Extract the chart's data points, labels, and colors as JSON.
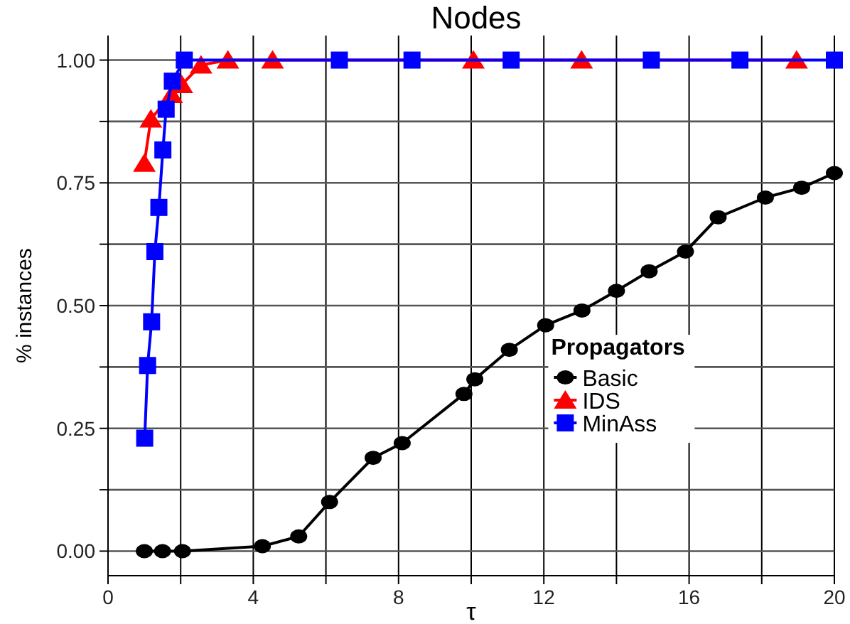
{
  "chart_data": {
    "type": "line",
    "title": "Nodes",
    "xlabel": "τ",
    "ylabel": "% instances",
    "legend_title": "Propagators",
    "legend": "right",
    "grid": true,
    "line_style": "solid",
    "xlim": [
      0,
      20
    ],
    "ylim": [
      -0.05,
      1.05
    ],
    "xticks": [
      0,
      {
        "value": 2,
        "label": null
      },
      4,
      {
        "value": 6,
        "label": null
      },
      8,
      {
        "value": 10,
        "label": null
      },
      12,
      {
        "value": 14,
        "label": null
      },
      16,
      {
        "value": 18,
        "label": null
      },
      20
    ],
    "yticks": [
      {
        "value": 0,
        "label": "0.00"
      },
      {
        "value": 0.125,
        "label": null
      },
      {
        "value": 0.25,
        "label": "0.25"
      },
      {
        "value": 0.375,
        "label": null
      },
      {
        "value": 0.5,
        "label": "0.50"
      },
      {
        "value": 0.625,
        "label": null
      },
      {
        "value": 0.75,
        "label": "0.75"
      },
      {
        "value": 0.875,
        "label": null
      },
      {
        "value": 1,
        "label": "1.00"
      }
    ],
    "series": [
      {
        "name": "Basic",
        "color": "#000000",
        "marker": "circle",
        "x": [
          1,
          1.5,
          2.05,
          4.25,
          5.25,
          6.1,
          7.3,
          8.1,
          9.8,
          10.1,
          11.05,
          12.05,
          13.05,
          14,
          14.9,
          15.9,
          16.8,
          18.1,
          19.1,
          20
        ],
        "values": [
          0,
          0,
          0,
          0.01,
          0.03,
          0.1,
          0.19,
          0.22,
          0.32,
          0.35,
          0.41,
          0.46,
          0.49,
          0.53,
          0.57,
          0.61,
          0.68,
          0.72,
          0.74,
          0.77
        ]
      },
      {
        "name": "IDS",
        "color": "#ff0000",
        "marker": "triangle",
        "x": [
          1,
          1.18,
          1.75,
          2.03,
          2.56,
          3.3,
          4.53,
          10.06,
          13.04,
          18.96
        ],
        "values": [
          0.79,
          0.88,
          0.93,
          0.95,
          0.99,
          1,
          1,
          1,
          1,
          1
        ]
      },
      {
        "name": "MinAss",
        "color": "#0000ff",
        "marker": "square",
        "x": [
          1.01,
          1.09,
          1.2,
          1.29,
          1.4,
          1.51,
          1.6,
          1.77,
          2.1,
          6.37,
          8.37,
          11.1,
          14.96,
          17.4,
          20
        ],
        "values": [
          0.23,
          0.378,
          0.467,
          0.61,
          0.7,
          0.817,
          0.9,
          0.957,
          1,
          1,
          1,
          1,
          1,
          1,
          1
        ]
      }
    ]
  }
}
